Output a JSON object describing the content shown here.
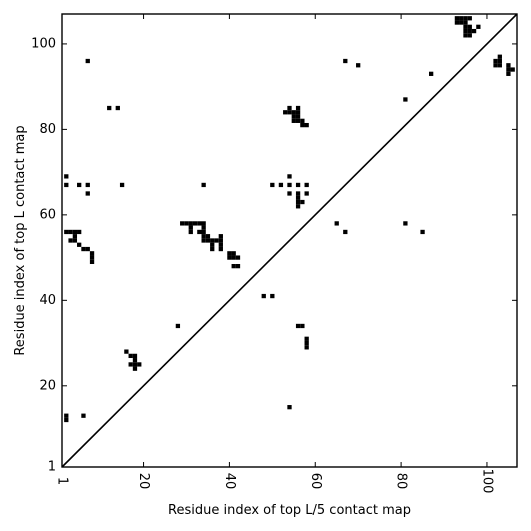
{
  "chart_data": {
    "type": "heatmap",
    "title": "",
    "xlabel": "Residue index of top L/5 contact map",
    "ylabel": "Residue index of top L contact map",
    "xlim": [
      1,
      107
    ],
    "ylim": [
      1,
      107
    ],
    "xticks": [
      1,
      20,
      40,
      60,
      80,
      100
    ],
    "yticks": [
      1,
      20,
      40,
      60,
      80,
      100
    ],
    "xtick_labels": [
      "1",
      "20",
      "40",
      "60",
      "80",
      "100"
    ],
    "ytick_labels": [
      "1",
      "20",
      "40",
      "60",
      "80",
      "100"
    ],
    "grid": false,
    "diagonal": true,
    "cell_color": "#000000",
    "upper_triangle_contacts": [
      [
        2,
        13
      ],
      [
        2,
        12
      ],
      [
        6,
        13
      ],
      [
        18,
        27
      ],
      [
        17,
        27
      ],
      [
        18,
        26
      ],
      [
        18,
        25
      ],
      [
        17,
        25
      ],
      [
        19,
        25
      ],
      [
        18,
        24
      ],
      [
        16,
        28
      ],
      [
        28,
        34
      ],
      [
        48,
        41
      ],
      [
        50,
        41
      ],
      [
        56,
        34
      ],
      [
        57,
        34
      ],
      [
        58,
        31
      ],
      [
        58,
        30
      ],
      [
        58,
        29
      ],
      [
        54,
        15
      ],
      [
        65,
        58
      ],
      [
        67,
        56
      ],
      [
        81,
        58
      ],
      [
        85,
        56
      ],
      [
        2,
        56
      ],
      [
        3,
        56
      ],
      [
        4,
        56
      ],
      [
        5,
        56
      ],
      [
        4,
        55
      ],
      [
        4,
        54
      ],
      [
        3,
        54
      ],
      [
        5,
        53
      ],
      [
        6,
        52
      ],
      [
        7,
        52
      ],
      [
        8,
        51
      ],
      [
        8,
        50
      ],
      [
        8,
        49
      ],
      [
        29,
        58
      ],
      [
        30,
        58
      ],
      [
        31,
        58
      ],
      [
        32,
        58
      ],
      [
        33,
        58
      ],
      [
        34,
        58
      ],
      [
        31,
        57
      ],
      [
        31,
        56
      ],
      [
        33,
        56
      ],
      [
        34,
        57
      ],
      [
        34,
        56
      ],
      [
        34,
        55
      ],
      [
        35,
        55
      ],
      [
        34,
        54
      ],
      [
        35,
        54
      ],
      [
        36,
        54
      ],
      [
        37,
        54
      ],
      [
        38,
        54
      ],
      [
        38,
        55
      ],
      [
        36,
        53
      ],
      [
        36,
        52
      ],
      [
        38,
        53
      ],
      [
        38,
        52
      ],
      [
        40,
        51
      ],
      [
        41,
        51
      ],
      [
        40,
        50
      ],
      [
        41,
        50
      ],
      [
        42,
        50
      ],
      [
        41,
        48
      ],
      [
        42,
        48
      ]
    ],
    "lower_triangle_contacts": [
      [
        2,
        69
      ],
      [
        2,
        67
      ],
      [
        5,
        67
      ],
      [
        7,
        67
      ],
      [
        7,
        65
      ],
      [
        7,
        96
      ],
      [
        12,
        85
      ],
      [
        14,
        85
      ],
      [
        15,
        67
      ],
      [
        34,
        67
      ],
      [
        50,
        67
      ],
      [
        52,
        67
      ],
      [
        54,
        69
      ],
      [
        54,
        67
      ],
      [
        54,
        65
      ],
      [
        56,
        67
      ],
      [
        56,
        65
      ],
      [
        56,
        64
      ],
      [
        56,
        63
      ],
      [
        56,
        62
      ],
      [
        57,
        63
      ],
      [
        58,
        67
      ],
      [
        58,
        65
      ],
      [
        53,
        84
      ],
      [
        54,
        84
      ],
      [
        54,
        85
      ],
      [
        55,
        84
      ],
      [
        55,
        83
      ],
      [
        55,
        82
      ],
      [
        56,
        84
      ],
      [
        56,
        85
      ],
      [
        56,
        83
      ],
      [
        56,
        82
      ],
      [
        57,
        82
      ],
      [
        57,
        81
      ],
      [
        58,
        81
      ],
      [
        67,
        96
      ],
      [
        70,
        95
      ],
      [
        81,
        87
      ],
      [
        87,
        93
      ],
      [
        93,
        106
      ],
      [
        94,
        106
      ],
      [
        95,
        106
      ],
      [
        93,
        105
      ],
      [
        94,
        105
      ],
      [
        95,
        105
      ],
      [
        96,
        106
      ],
      [
        95,
        104
      ],
      [
        95,
        103
      ],
      [
        96,
        104
      ],
      [
        96,
        103
      ],
      [
        95,
        102
      ],
      [
        96,
        102
      ],
      [
        97,
        103
      ],
      [
        98,
        104
      ],
      [
        102,
        96
      ],
      [
        102,
        95
      ],
      [
        103,
        96
      ],
      [
        103,
        95
      ],
      [
        103,
        97
      ],
      [
        105,
        95
      ],
      [
        105,
        94
      ],
      [
        105,
        93
      ],
      [
        106,
        94
      ]
    ]
  }
}
